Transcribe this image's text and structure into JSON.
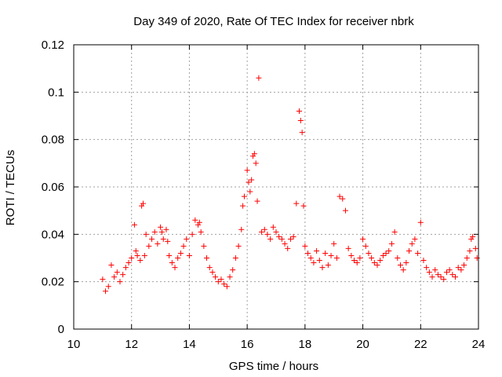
{
  "chart_data": {
    "type": "scatter",
    "title": "Day 349 of 2020, Rate Of TEC Index for receiver nbrk",
    "xlabel": "GPS time / hours",
    "ylabel": "ROTI / TECUs",
    "xlim": [
      10,
      24
    ],
    "ylim": [
      0,
      0.12
    ],
    "x_ticks": [
      "10",
      "12",
      "14",
      "16",
      "18",
      "20",
      "22",
      "24"
    ],
    "y_ticks": [
      "0",
      "0.02",
      "0.04",
      "0.06",
      "0.08",
      "0.1",
      "0.12"
    ],
    "grid": true,
    "marker": "plus",
    "color": "#ff0000",
    "series": [
      {
        "x": [
          11.0,
          11.1,
          11.2,
          11.3,
          11.4,
          11.5,
          11.6,
          11.7,
          11.8,
          11.9,
          12.0,
          12.1,
          12.15,
          12.2,
          12.3,
          12.35,
          12.4,
          12.45,
          12.5,
          12.6,
          12.7,
          12.8,
          12.9,
          13.0,
          13.05,
          13.1,
          13.2,
          13.25,
          13.3,
          13.4,
          13.5,
          13.6,
          13.7,
          13.8,
          13.9,
          14.0,
          14.1,
          14.2,
          14.3,
          14.35,
          14.4,
          14.5,
          14.6,
          14.7,
          14.8,
          14.9,
          15.0,
          15.1,
          15.2,
          15.3,
          15.4,
          15.5,
          15.6,
          15.7,
          15.8,
          15.85,
          15.9,
          16.0,
          16.05,
          16.1,
          16.15,
          16.2,
          16.25,
          16.3,
          16.35,
          16.4,
          16.5,
          16.6,
          16.7,
          16.8,
          16.9,
          17.0,
          17.1,
          17.2,
          17.3,
          17.4,
          17.5,
          17.6,
          17.7,
          17.8,
          17.85,
          17.9,
          17.95,
          18.0,
          18.1,
          18.2,
          18.3,
          18.4,
          18.5,
          18.6,
          18.7,
          18.8,
          18.9,
          19.0,
          19.1,
          19.2,
          19.3,
          19.4,
          19.5,
          19.6,
          19.7,
          19.8,
          19.9,
          20.0,
          20.1,
          20.2,
          20.3,
          20.4,
          20.5,
          20.6,
          20.7,
          20.8,
          20.9,
          21.0,
          21.1,
          21.2,
          21.3,
          21.4,
          21.5,
          21.6,
          21.7,
          21.8,
          21.9,
          22.0,
          22.1,
          22.2,
          22.3,
          22.4,
          22.5,
          22.6,
          22.7,
          22.8,
          22.9,
          23.0,
          23.1,
          23.2,
          23.3,
          23.4,
          23.5,
          23.6,
          23.7,
          23.75,
          23.8,
          23.9,
          23.95
        ],
        "y": [
          0.021,
          0.016,
          0.018,
          0.027,
          0.022,
          0.024,
          0.02,
          0.023,
          0.026,
          0.028,
          0.03,
          0.044,
          0.033,
          0.031,
          0.029,
          0.052,
          0.053,
          0.031,
          0.04,
          0.035,
          0.038,
          0.041,
          0.036,
          0.043,
          0.041,
          0.038,
          0.042,
          0.037,
          0.031,
          0.028,
          0.026,
          0.03,
          0.032,
          0.035,
          0.038,
          0.031,
          0.04,
          0.046,
          0.044,
          0.045,
          0.041,
          0.035,
          0.03,
          0.026,
          0.024,
          0.022,
          0.02,
          0.021,
          0.019,
          0.018,
          0.022,
          0.025,
          0.03,
          0.035,
          0.042,
          0.052,
          0.056,
          0.067,
          0.062,
          0.058,
          0.063,
          0.073,
          0.074,
          0.07,
          0.054,
          0.106,
          0.041,
          0.042,
          0.04,
          0.038,
          0.043,
          0.041,
          0.039,
          0.038,
          0.036,
          0.034,
          0.038,
          0.039,
          0.053,
          0.092,
          0.088,
          0.083,
          0.052,
          0.035,
          0.032,
          0.03,
          0.028,
          0.033,
          0.029,
          0.026,
          0.032,
          0.027,
          0.031,
          0.036,
          0.03,
          0.056,
          0.055,
          0.05,
          0.034,
          0.031,
          0.029,
          0.028,
          0.03,
          0.038,
          0.035,
          0.032,
          0.03,
          0.028,
          0.027,
          0.029,
          0.031,
          0.032,
          0.033,
          0.036,
          0.041,
          0.03,
          0.027,
          0.025,
          0.028,
          0.033,
          0.036,
          0.038,
          0.032,
          0.045,
          0.029,
          0.026,
          0.024,
          0.022,
          0.025,
          0.023,
          0.022,
          0.021,
          0.024,
          0.025,
          0.023,
          0.022,
          0.026,
          0.025,
          0.027,
          0.03,
          0.033,
          0.038,
          0.039,
          0.034,
          0.03
        ]
      }
    ]
  }
}
